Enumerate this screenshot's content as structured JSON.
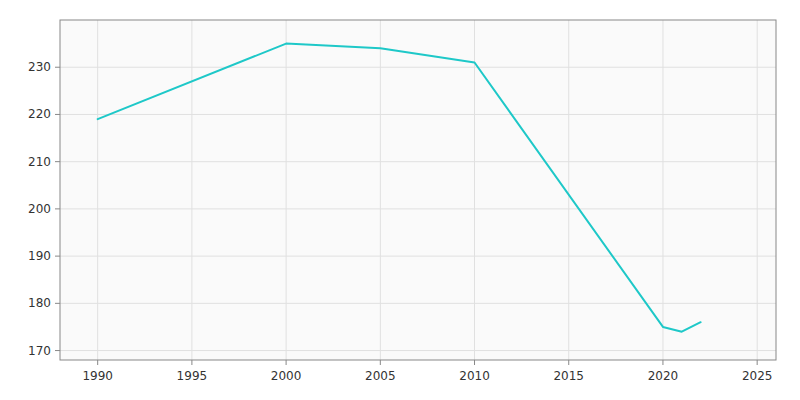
{
  "chart_data": {
    "type": "line",
    "x": [
      1990,
      2000,
      2005,
      2010,
      2020,
      2021,
      2022
    ],
    "values": [
      219,
      235,
      234,
      231,
      175,
      174,
      176
    ],
    "color": "#1ec8c8",
    "xlim": [
      1988,
      2026
    ],
    "ylim": [
      168,
      240
    ],
    "xticks": [
      1990,
      1995,
      2000,
      2005,
      2010,
      2015,
      2020,
      2025
    ],
    "yticks": [
      170,
      180,
      190,
      200,
      210,
      220,
      230
    ],
    "grid": true
  }
}
